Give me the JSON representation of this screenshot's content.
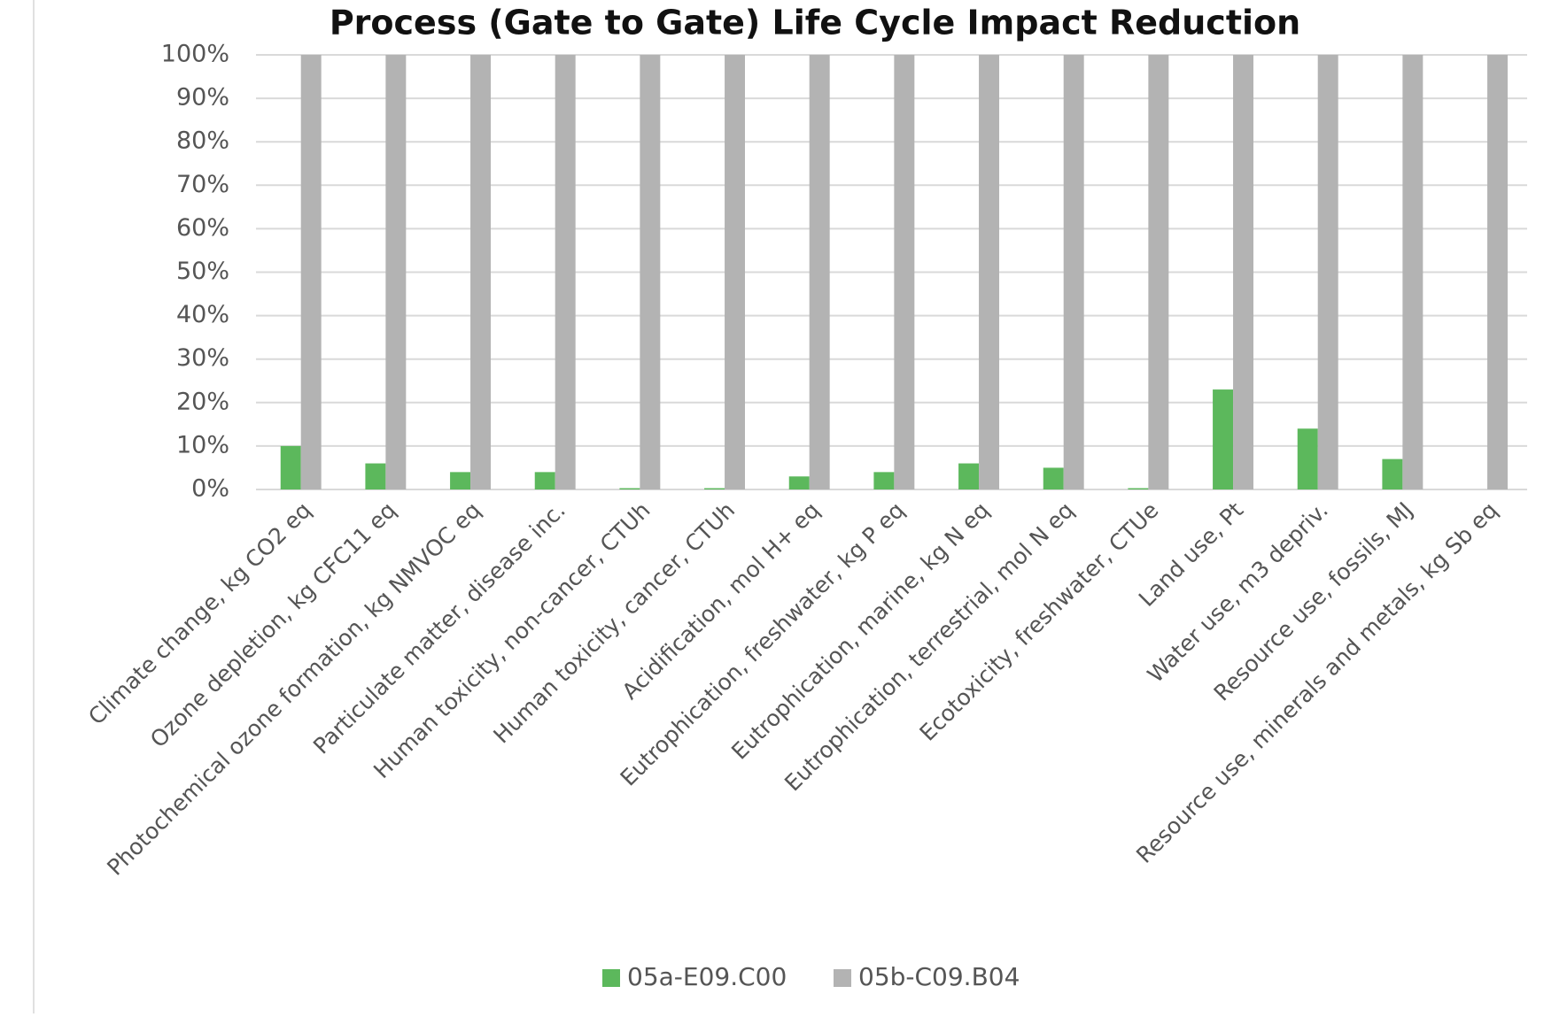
{
  "chart_data": {
    "type": "bar",
    "title": "Process (Gate to Gate) Life Cycle Impact Reduction",
    "categories": [
      "Climate change, kg CO2 eq",
      "Ozone depletion, kg CFC11 eq",
      "Photochemical ozone formation, kg NMVOC eq",
      "Particulate matter, disease inc.",
      "Human toxicity, non-cancer, CTUh",
      "Human toxicity, cancer, CTUh",
      "Acidification, mol H+ eq",
      "Eutrophication, freshwater, kg P eq",
      "Eutrophication, marine, kg N eq",
      "Eutrophication, terrestrial, mol N eq",
      "Ecotoxicity, freshwater, CTUe",
      "Land use, Pt",
      "Water use, m3 depriv.",
      "Resource use, fossils, MJ",
      "Resource use, minerals and metals, kg Sb eq"
    ],
    "series": [
      {
        "name": "05a-E09.C00",
        "color": "#5cb85c",
        "values": [
          10,
          6,
          4,
          4,
          0.3,
          0.3,
          3,
          4,
          6,
          5,
          0.3,
          23,
          14,
          7,
          0
        ]
      },
      {
        "name": "05b-C09.B04",
        "color": "#b3b3b3",
        "values": [
          100,
          100,
          100,
          100,
          100,
          100,
          100,
          100,
          100,
          100,
          100,
          100,
          100,
          100,
          100
        ]
      }
    ],
    "ylim": [
      0,
      100
    ],
    "yticks": [
      {
        "value": 0,
        "label": "0%"
      },
      {
        "value": 10,
        "label": "10%"
      },
      {
        "value": 20,
        "label": "20%"
      },
      {
        "value": 30,
        "label": "30%"
      },
      {
        "value": 40,
        "label": "40%"
      },
      {
        "value": 50,
        "label": "50%"
      },
      {
        "value": 60,
        "label": "60%"
      },
      {
        "value": 70,
        "label": "70%"
      },
      {
        "value": 80,
        "label": "80%"
      },
      {
        "value": 90,
        "label": "90%"
      },
      {
        "value": 100,
        "label": "100%"
      }
    ],
    "grid": true,
    "legend": "bottom"
  }
}
